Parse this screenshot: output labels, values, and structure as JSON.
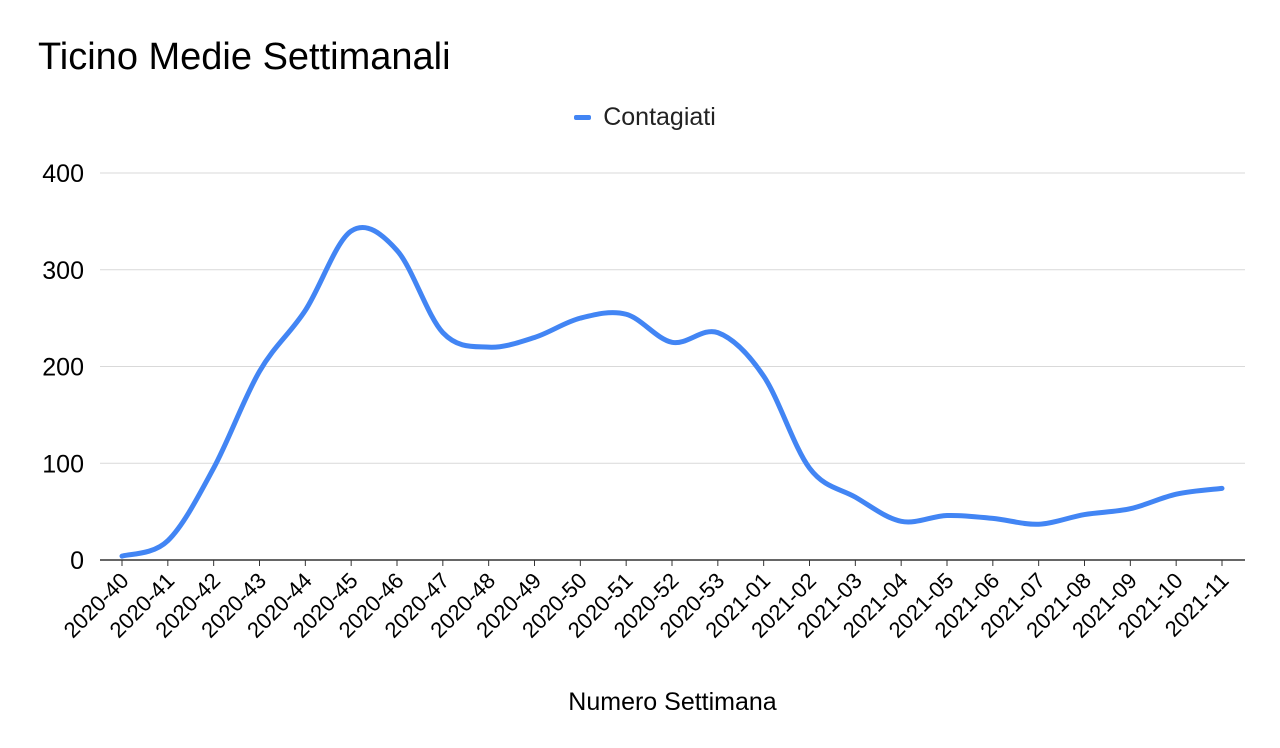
{
  "chart_data": {
    "type": "line",
    "title": "Ticino Medie Settimanali",
    "xlabel": "Numero Settimana",
    "ylabel": "",
    "ylim": [
      0,
      400
    ],
    "yticks": [
      0,
      100,
      200,
      300,
      400
    ],
    "grid": true,
    "legend_position": "top",
    "categories": [
      "2020-40",
      "2020-41",
      "2020-42",
      "2020-43",
      "2020-44",
      "2020-45",
      "2020-46",
      "2020-47",
      "2020-48",
      "2020-49",
      "2020-50",
      "2020-51",
      "2020-52",
      "2020-53",
      "2021-01",
      "2021-02",
      "2021-03",
      "2021-04",
      "2021-05",
      "2021-06",
      "2021-07",
      "2021-08",
      "2021-09",
      "2021-10",
      "2021-11"
    ],
    "series": [
      {
        "name": "Contagiati",
        "color": "#4285f4",
        "values": [
          4,
          20,
          95,
          195,
          258,
          340,
          320,
          235,
          220,
          230,
          250,
          254,
          225,
          235,
          190,
          95,
          65,
          40,
          46,
          43,
          37,
          47,
          53,
          68,
          74
        ]
      }
    ]
  }
}
